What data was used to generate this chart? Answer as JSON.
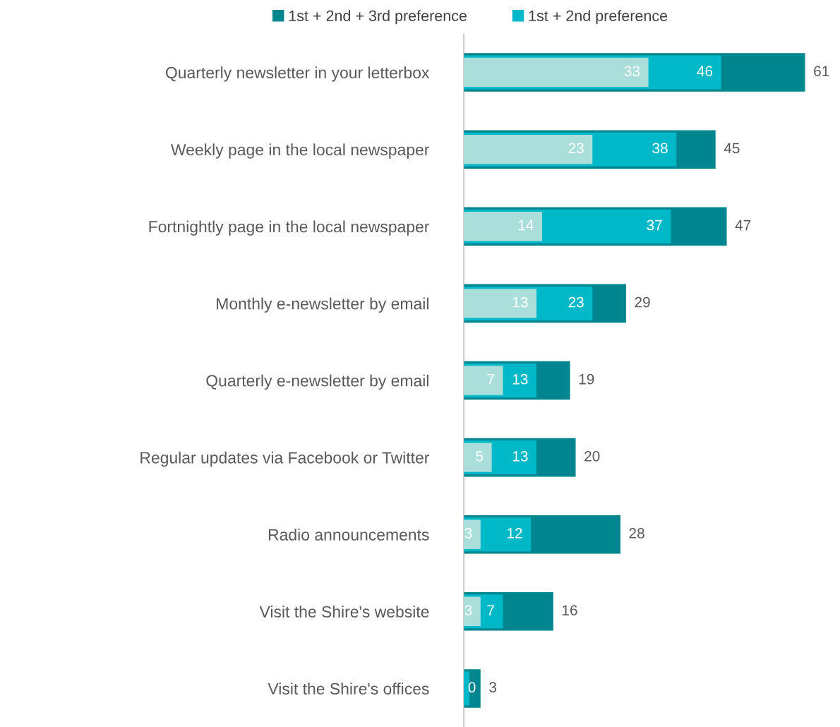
{
  "chart_data": {
    "type": "bar",
    "orientation": "horizontal",
    "legend": "top",
    "grid": false,
    "categories": [
      "Quarterly newsletter in your letterbox",
      "Weekly page in the local newspaper",
      "Fortnightly page in the local newspaper",
      "Monthly e-newsletter by email",
      "Quarterly e-newsletter by email",
      "Regular updates via Facebook or Twitter",
      "Radio announcements",
      "Visit the Shire's website",
      "Visit the Shire's offices"
    ],
    "series": [
      {
        "name": "1st + 2nd + 3rd preference",
        "color": "#00868f",
        "values": [
          61,
          45,
          47,
          29,
          19,
          20,
          28,
          16,
          3
        ],
        "value_labels": [
          "61",
          "45",
          "47",
          "29",
          "19",
          "20",
          "28",
          "16",
          "3"
        ]
      },
      {
        "name": "1st + 2nd preference",
        "color": "#00b8c8",
        "values": [
          46,
          38,
          37,
          23,
          13,
          13,
          12,
          7,
          1
        ],
        "value_labels": [
          "46",
          "38",
          "37",
          "23",
          "13",
          "13",
          "12",
          "7",
          null
        ]
      },
      {
        "color": "#aadedb",
        "values": [
          33,
          23,
          14,
          13,
          7,
          5,
          3,
          3,
          0
        ],
        "value_labels": [
          "33",
          "23",
          "14",
          "13",
          "7",
          "5",
          "3",
          "3",
          "0"
        ]
      }
    ]
  }
}
